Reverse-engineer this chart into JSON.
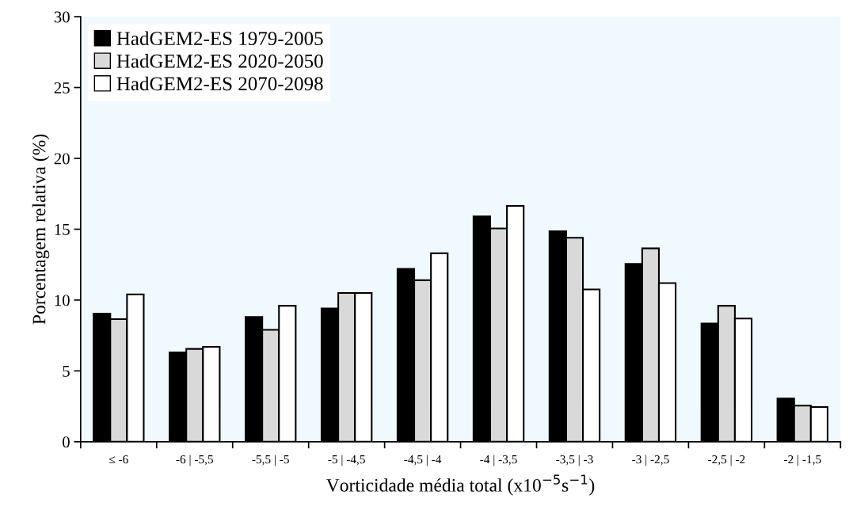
{
  "chart_data": {
    "type": "bar",
    "xlabel": "Vorticidade média total (x10$^{−5}$s$^{−1}$)",
    "ylabel": "Porcentagem relativa (%)",
    "categories": [
      "≤ -6",
      "-6 | -5,5",
      "-5,5 | -5",
      "-5 | -4,5",
      "-4,5 | -4",
      "-4 | -3,5",
      "-3,5 | -3",
      "-3 | -2,5",
      "-2,5 | -2",
      "-2 | -1,5"
    ],
    "series": [
      {
        "name": "HadGEM2-ES 1979-2005",
        "color": "#000000",
        "values": [
          9.05,
          6.3,
          8.8,
          9.4,
          12.2,
          15.9,
          14.85,
          12.55,
          8.35,
          3.05
        ]
      },
      {
        "name": "HadGEM2-ES 2020-2050",
        "color": "#d9d9d9",
        "values": [
          8.65,
          6.55,
          7.9,
          10.5,
          11.4,
          15.05,
          14.4,
          13.65,
          9.6,
          2.55
        ]
      },
      {
        "name": "HadGEM2-ES 2070-2098",
        "color": "#ffffff",
        "values": [
          10.4,
          6.7,
          9.6,
          10.5,
          13.3,
          16.65,
          10.75,
          11.2,
          8.7,
          2.45
        ]
      }
    ],
    "ylim": [
      0,
      30
    ],
    "yticks": [
      0,
      5,
      10,
      15,
      20,
      25,
      30
    ],
    "grid": false,
    "legend": "top left"
  }
}
